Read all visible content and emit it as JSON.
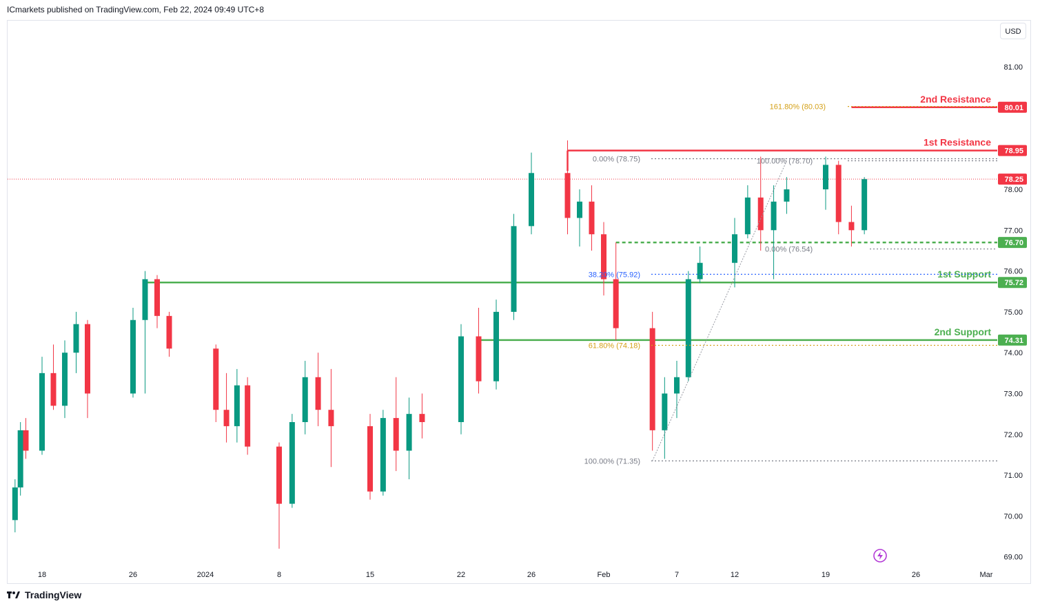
{
  "header": {
    "publisher": "ICmarkets published on TradingView.com, Feb 22, 2024 09:49 UTC+8"
  },
  "currency_button": "USD",
  "footer": {
    "brand": "TradingView"
  },
  "colors": {
    "up": "#089981",
    "down": "#f23645",
    "support": "#4caf50",
    "resistance": "#f23645",
    "fib_gold": "#d4a017",
    "fib_blue": "#2962ff",
    "fib_gray": "#787b86"
  },
  "chart_data": {
    "type": "candlestick",
    "ylim": [
      68.75,
      82.0
    ],
    "y_ticks": [
      "69.00",
      "70.00",
      "71.00",
      "72.00",
      "73.00",
      "74.00",
      "75.00",
      "76.00",
      "77.00",
      "78.00",
      "81.00"
    ],
    "x_ticks": [
      {
        "label": "18",
        "x": "2023-12-18"
      },
      {
        "label": "26",
        "x": "2023-12-26"
      },
      {
        "label": "2024",
        "x": "2024-01-01"
      },
      {
        "label": "8",
        "x": "2024-01-08"
      },
      {
        "label": "15",
        "x": "2024-01-15"
      },
      {
        "label": "22",
        "x": "2024-01-22"
      },
      {
        "label": "26",
        "x": "2024-01-26"
      },
      {
        "label": "Feb",
        "x": "2024-02-01"
      },
      {
        "label": "7",
        "x": "2024-02-07"
      },
      {
        "label": "12",
        "x": "2024-02-12"
      },
      {
        "label": "19",
        "x": "2024-02-19"
      },
      {
        "label": "26",
        "x": "2024-02-26"
      },
      {
        "label": "Mar",
        "x": "2024-03-01"
      }
    ],
    "price_tags": [
      {
        "value": "80.01",
        "price": 80.01,
        "color": "#f23645"
      },
      {
        "value": "78.95",
        "price": 78.95,
        "color": "#f23645"
      },
      {
        "value": "78.25",
        "price": 78.25,
        "color": "#f23645"
      },
      {
        "value": "76.70",
        "price": 76.7,
        "color": "#4caf50"
      },
      {
        "value": "75.72",
        "price": 75.72,
        "color": "#4caf50"
      },
      {
        "value": "74.31",
        "price": 74.31,
        "color": "#4caf50"
      }
    ],
    "levels": [
      {
        "label": "2nd Resistance",
        "price": 80.01,
        "from": "2024-02-21",
        "color": "#f23645"
      },
      {
        "label": "1st Resistance",
        "price": 78.95,
        "from": "2024-01-29",
        "color": "#f23645"
      },
      {
        "label": "1st Support",
        "price": 75.72,
        "from": "2023-12-27",
        "color": "#4caf50"
      },
      {
        "label": "2nd Support",
        "price": 74.31,
        "from": "2024-01-23",
        "color": "#4caf50"
      }
    ],
    "pivot_line": {
      "price": 76.7,
      "from": "2024-02-02",
      "color": "#4caf50"
    },
    "current_price": 78.25,
    "fib_labels": [
      {
        "text": "0.00% (78.75)",
        "price": 78.75,
        "x": "2024-02-04",
        "color": "#787b86"
      },
      {
        "text": "38.20% (75.92)",
        "price": 75.92,
        "x": "2024-02-04",
        "color": "#2962ff"
      },
      {
        "text": "61.80% (74.18)",
        "price": 74.18,
        "x": "2024-02-04",
        "color": "#d4a017"
      },
      {
        "text": "100.00% (71.35)",
        "price": 71.35,
        "x": "2024-02-04",
        "color": "#787b86"
      },
      {
        "text": "100.00% (78.70)",
        "price": 78.7,
        "x": "2024-02-18",
        "color": "#787b86"
      },
      {
        "text": "0.00% (76.54)",
        "price": 76.54,
        "x": "2024-02-18",
        "color": "#787b86"
      },
      {
        "text": "161.80% (80.03)",
        "price": 80.03,
        "x": "2024-02-19",
        "color": "#d4a017"
      }
    ],
    "candles": [
      {
        "t": "2023-12-13",
        "o": 69.9,
        "h": 70.9,
        "l": 69.6,
        "c": 70.7
      },
      {
        "t": "2023-12-14",
        "o": 70.7,
        "h": 72.3,
        "l": 70.5,
        "c": 72.1
      },
      {
        "t": "2023-12-15",
        "o": 72.1,
        "h": 72.4,
        "l": 71.4,
        "c": 71.6
      },
      {
        "t": "2023-12-18",
        "o": 71.6,
        "h": 73.9,
        "l": 71.5,
        "c": 73.5
      },
      {
        "t": "2023-12-19",
        "o": 73.5,
        "h": 74.2,
        "l": 72.6,
        "c": 72.7
      },
      {
        "t": "2023-12-20",
        "o": 72.7,
        "h": 74.3,
        "l": 72.4,
        "c": 74.0
      },
      {
        "t": "2023-12-21",
        "o": 74.0,
        "h": 75.0,
        "l": 73.5,
        "c": 74.7
      },
      {
        "t": "2023-12-22",
        "o": 74.7,
        "h": 74.8,
        "l": 72.4,
        "c": 73.0
      },
      {
        "t": "2023-12-26",
        "o": 73.0,
        "h": 75.1,
        "l": 72.9,
        "c": 74.8
      },
      {
        "t": "2023-12-27",
        "o": 74.8,
        "h": 76.0,
        "l": 73.0,
        "c": 75.8
      },
      {
        "t": "2023-12-28",
        "o": 75.8,
        "h": 75.9,
        "l": 74.6,
        "c": 74.9
      },
      {
        "t": "2023-12-29",
        "o": 74.9,
        "h": 75.0,
        "l": 73.9,
        "c": 74.1
      },
      {
        "t": "2024-01-02",
        "o": 74.1,
        "h": 74.2,
        "l": 72.3,
        "c": 72.6
      },
      {
        "t": "2024-01-03",
        "o": 72.6,
        "h": 73.5,
        "l": 71.8,
        "c": 72.2
      },
      {
        "t": "2024-01-04",
        "o": 72.2,
        "h": 73.6,
        "l": 71.8,
        "c": 73.2
      },
      {
        "t": "2024-01-05",
        "o": 73.2,
        "h": 73.4,
        "l": 71.5,
        "c": 71.7
      },
      {
        "t": "2024-01-08",
        "o": 71.7,
        "h": 71.8,
        "l": 69.2,
        "c": 70.3
      },
      {
        "t": "2024-01-09",
        "o": 70.3,
        "h": 72.5,
        "l": 70.2,
        "c": 72.3
      },
      {
        "t": "2024-01-10",
        "o": 72.3,
        "h": 73.8,
        "l": 72.0,
        "c": 73.4
      },
      {
        "t": "2024-01-11",
        "o": 73.4,
        "h": 74.0,
        "l": 72.2,
        "c": 72.6
      },
      {
        "t": "2024-01-12",
        "o": 72.6,
        "h": 73.6,
        "l": 71.2,
        "c": 72.2
      },
      {
        "t": "2024-01-15",
        "o": 72.2,
        "h": 72.5,
        "l": 70.4,
        "c": 70.6
      },
      {
        "t": "2024-01-16",
        "o": 70.6,
        "h": 72.6,
        "l": 70.5,
        "c": 72.4
      },
      {
        "t": "2024-01-17",
        "o": 72.4,
        "h": 73.4,
        "l": 71.1,
        "c": 71.6
      },
      {
        "t": "2024-01-18",
        "o": 71.6,
        "h": 72.9,
        "l": 70.9,
        "c": 72.5
      },
      {
        "t": "2024-01-19",
        "o": 72.5,
        "h": 73.0,
        "l": 71.9,
        "c": 72.3
      },
      {
        "t": "2024-01-22",
        "o": 72.3,
        "h": 74.7,
        "l": 72.0,
        "c": 74.4
      },
      {
        "t": "2024-01-23",
        "o": 74.4,
        "h": 75.1,
        "l": 73.0,
        "c": 73.3
      },
      {
        "t": "2024-01-24",
        "o": 73.3,
        "h": 75.3,
        "l": 73.1,
        "c": 75.0
      },
      {
        "t": "2024-01-25",
        "o": 75.0,
        "h": 77.4,
        "l": 74.8,
        "c": 77.1
      },
      {
        "t": "2024-01-26",
        "o": 77.1,
        "h": 78.9,
        "l": 76.9,
        "c": 78.4
      },
      {
        "t": "2024-01-29",
        "o": 78.4,
        "h": 79.2,
        "l": 76.9,
        "c": 77.3
      },
      {
        "t": "2024-01-30",
        "o": 77.3,
        "h": 78.0,
        "l": 76.6,
        "c": 77.7
      },
      {
        "t": "2024-01-31",
        "o": 77.7,
        "h": 78.1,
        "l": 76.5,
        "c": 76.9
      },
      {
        "t": "2024-02-01",
        "o": 76.9,
        "h": 77.2,
        "l": 75.4,
        "c": 75.8
      },
      {
        "t": "2024-02-02",
        "o": 75.8,
        "h": 76.7,
        "l": 74.3,
        "c": 74.6
      },
      {
        "t": "2024-02-05",
        "o": 74.6,
        "h": 75.0,
        "l": 71.6,
        "c": 72.1
      },
      {
        "t": "2024-02-06",
        "o": 72.1,
        "h": 73.4,
        "l": 71.4,
        "c": 73.0
      },
      {
        "t": "2024-02-07",
        "o": 73.0,
        "h": 73.8,
        "l": 72.4,
        "c": 73.4
      },
      {
        "t": "2024-02-08",
        "o": 73.4,
        "h": 76.0,
        "l": 73.3,
        "c": 75.8
      },
      {
        "t": "2024-02-09",
        "o": 75.8,
        "h": 76.6,
        "l": 75.7,
        "c": 76.2
      },
      {
        "t": "2024-02-12",
        "o": 76.2,
        "h": 77.3,
        "l": 75.6,
        "c": 76.9
      },
      {
        "t": "2024-02-13",
        "o": 76.9,
        "h": 78.1,
        "l": 76.8,
        "c": 77.8
      },
      {
        "t": "2024-02-14",
        "o": 77.8,
        "h": 78.8,
        "l": 76.5,
        "c": 77.0
      },
      {
        "t": "2024-02-15",
        "o": 77.0,
        "h": 78.1,
        "l": 75.8,
        "c": 77.7
      },
      {
        "t": "2024-02-16",
        "o": 77.7,
        "h": 78.3,
        "l": 77.4,
        "c": 78.0
      },
      {
        "t": "2024-02-19",
        "o": 78.0,
        "h": 78.8,
        "l": 77.5,
        "c": 78.6
      },
      {
        "t": "2024-02-20",
        "o": 78.6,
        "h": 78.7,
        "l": 76.9,
        "c": 77.2
      },
      {
        "t": "2024-02-21",
        "o": 77.2,
        "h": 77.6,
        "l": 76.6,
        "c": 77.0
      },
      {
        "t": "2024-02-22",
        "o": 77.0,
        "h": 78.3,
        "l": 76.9,
        "c": 78.25
      }
    ]
  }
}
